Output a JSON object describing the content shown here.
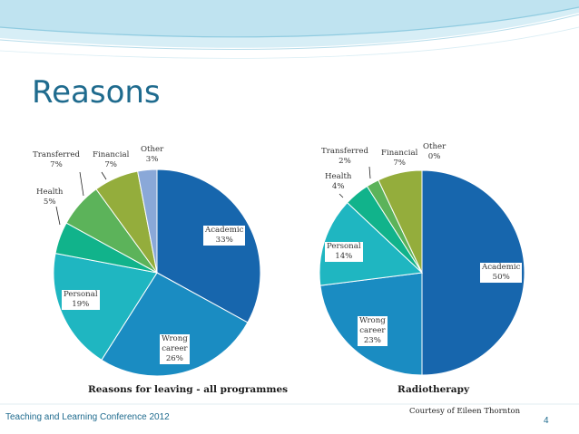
{
  "slide": {
    "title": "Reasons",
    "footer": "Teaching and Learning Conference 2012",
    "credit": "Courtesy of Eileen Thornton",
    "page_number": "4"
  },
  "colors": {
    "Academic": "#1766ad",
    "Wrong career": "#1a8cc2",
    "Personal": "#1fb6c1",
    "Health": "#11b38b",
    "Transferred": "#5cb35a",
    "Financial": "#94ad3c",
    "Other": "#8aa8d8",
    "title": "#1f6b8e"
  },
  "chart_data": [
    {
      "type": "pie",
      "title": "Reasons for leaving - all programmes",
      "categories": [
        "Academic",
        "Wrong career",
        "Personal",
        "Health",
        "Transferred",
        "Financial",
        "Other"
      ],
      "values": [
        33,
        26,
        19,
        5,
        7,
        7,
        3
      ],
      "labels": [
        {
          "text": "Academic\n33%"
        },
        {
          "text": "Wrong\ncareer\n26%"
        },
        {
          "text": "Personal\n19%"
        },
        {
          "text": "Health\n5%"
        },
        {
          "text": "Transferred\n7%"
        },
        {
          "text": "Financial\n7%"
        },
        {
          "text": "Other\n3%"
        }
      ]
    },
    {
      "type": "pie",
      "title": "Radiotherapy",
      "categories": [
        "Academic",
        "Wrong career",
        "Personal",
        "Health",
        "Transferred",
        "Financial",
        "Other"
      ],
      "values": [
        50,
        23,
        14,
        4,
        2,
        7,
        0
      ],
      "labels": [
        {
          "text": "Academic\n50%"
        },
        {
          "text": "Wrong\ncareer\n23%"
        },
        {
          "text": "Personal\n14%"
        },
        {
          "text": "Health\n4%"
        },
        {
          "text": "Transferred\n2%"
        },
        {
          "text": "Financial\n7%"
        },
        {
          "text": "Other\n0%"
        }
      ]
    }
  ]
}
